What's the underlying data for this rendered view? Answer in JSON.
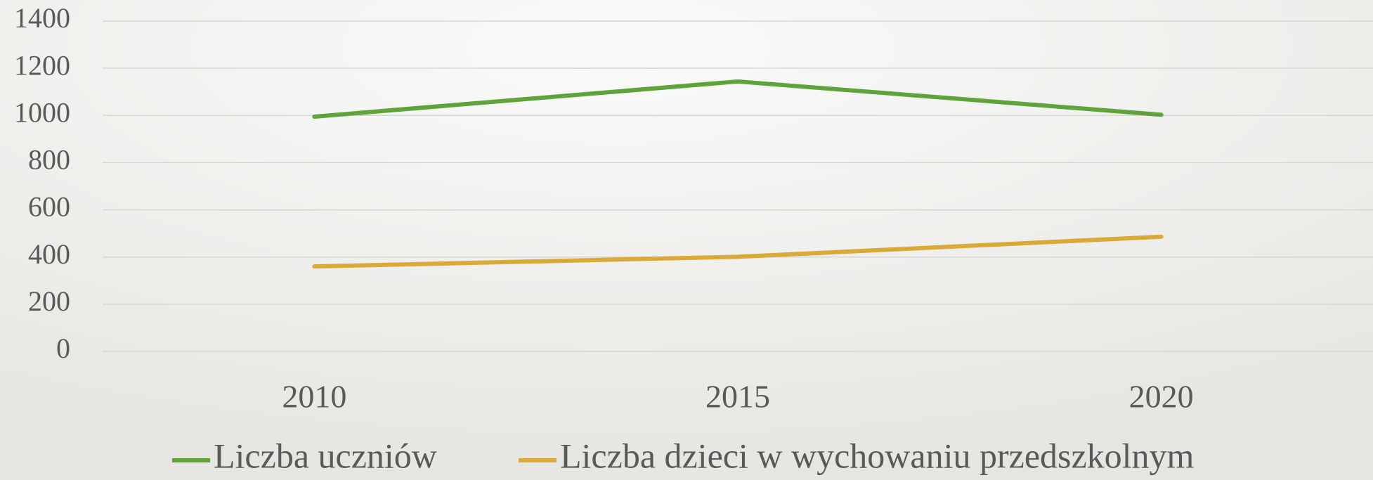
{
  "chart_data": {
    "type": "line",
    "categories": [
      "2010",
      "2015",
      "2020"
    ],
    "series": [
      {
        "name": "Liczba uczniów",
        "color": "#5fa33a",
        "values": [
          995,
          1144,
          1003
        ]
      },
      {
        "name": "Liczba dzieci w wychowaniu przedszkolnym",
        "color": "#dba93a",
        "values": [
          360,
          401,
          486
        ]
      }
    ],
    "ylim": [
      0,
      1400
    ],
    "yticks": [
      0,
      200,
      400,
      600,
      800,
      1000,
      1200,
      1400
    ],
    "grid": true,
    "legend": "bottom"
  }
}
